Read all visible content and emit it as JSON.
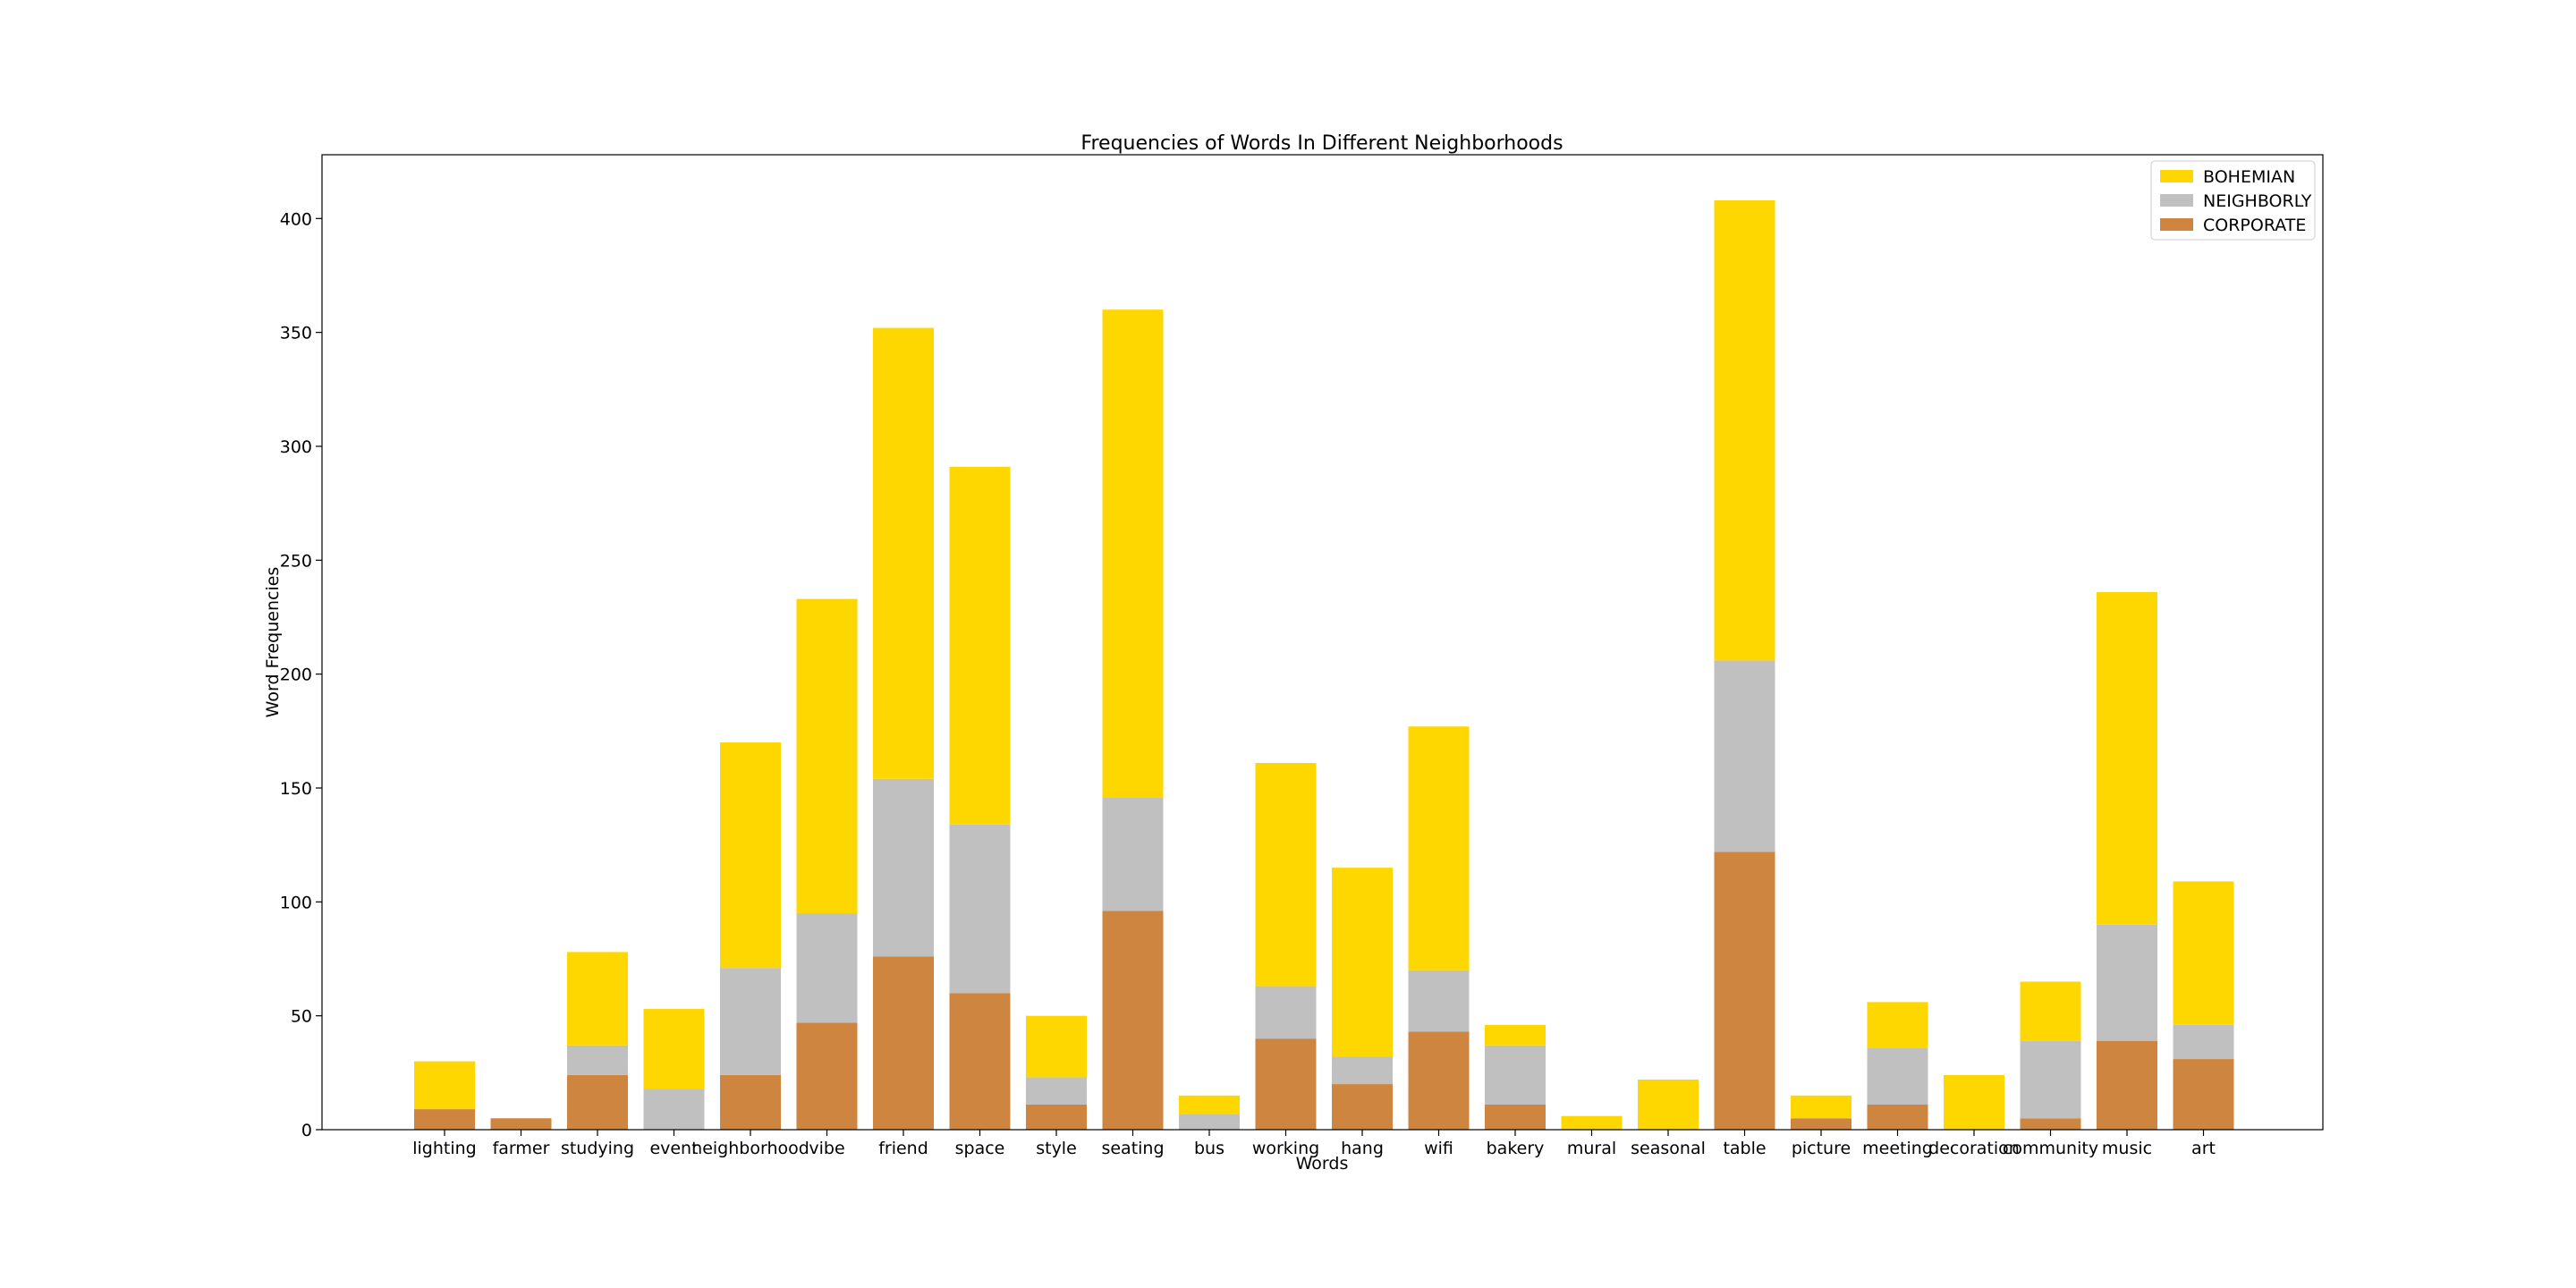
{
  "chart_data": {
    "type": "bar",
    "stacked": true,
    "title": "Frequencies of Words In Different Neighborhoods",
    "xlabel": "Words",
    "ylabel": "Word Frequencies",
    "ylim": [
      0,
      428
    ],
    "yticks": [
      0,
      50,
      100,
      150,
      200,
      250,
      300,
      350,
      400
    ],
    "grid": false,
    "legend_position": "top-right",
    "categories": [
      "lighting",
      "farmer",
      "studying",
      "event",
      "neighborhood",
      "vibe",
      "friend",
      "space",
      "style",
      "seating",
      "bus",
      "working",
      "hang",
      "wifi",
      "bakery",
      "mural",
      "seasonal",
      "table",
      "picture",
      "meeting",
      "decoration",
      "community",
      "music",
      "art"
    ],
    "series": [
      {
        "name": "CORPORATE",
        "color": "#cd853f",
        "values": [
          9,
          5,
          24,
          0,
          24,
          47,
          76,
          60,
          11,
          96,
          0,
          40,
          20,
          43,
          11,
          0,
          0,
          122,
          5,
          11,
          0,
          5,
          39,
          31
        ]
      },
      {
        "name": "NEIGHBORLY",
        "color": "#c0c0c0",
        "values": [
          0,
          0,
          13,
          18,
          47,
          48,
          78,
          74,
          12,
          50,
          7,
          23,
          12,
          27,
          26,
          0,
          0,
          84,
          0,
          25,
          0,
          34,
          51,
          15
        ]
      },
      {
        "name": "BOHEMIAN",
        "color": "#ffd700",
        "values": [
          21,
          0,
          41,
          35,
          99,
          138,
          198,
          157,
          27,
          214,
          8,
          98,
          83,
          107,
          9,
          6,
          22,
          202,
          10,
          20,
          24,
          26,
          146,
          63
        ]
      }
    ],
    "legend_order": [
      "BOHEMIAN",
      "NEIGHBORLY",
      "CORPORATE"
    ]
  }
}
